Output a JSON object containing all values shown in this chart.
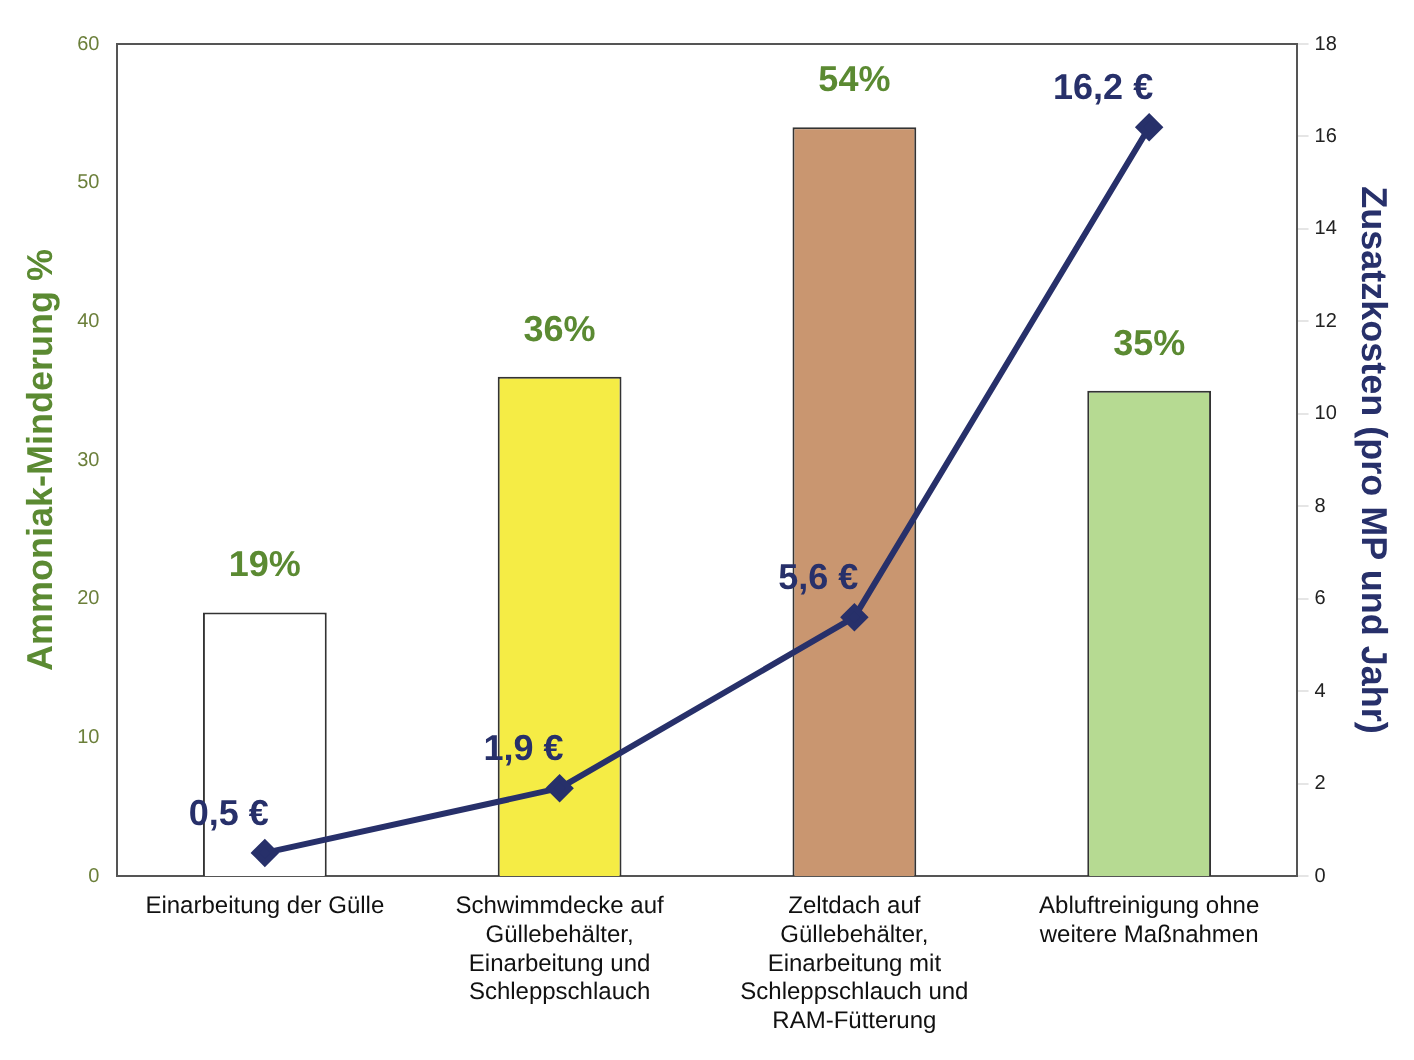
{
  "chart_data": {
    "type": "bar",
    "ylabel": "Ammoniak-Minderung %",
    "y2label": "Zusatzkosten (pro MP und Jahr)",
    "categories": [
      "Einarbeitung der Gülle",
      "Schwimmdecke auf Güllebehälter, Einarbeitung und Schleppschlauch",
      "Zeltdach auf Güllebehälter, Einarbeitung mit Schleppschlauch und RAM-Fütterung",
      "Abluftreinigung ohne weitere Maßnahmen"
    ],
    "series": [
      {
        "colors": [
          "#ffffff",
          "#f5ec45",
          "#c99670",
          "#b6da92"
        ],
        "values": [
          19,
          36,
          54,
          35
        ],
        "value_labels": [
          "19%",
          "36%",
          "54%",
          "35%"
        ]
      },
      {
        "type": "line",
        "axis": "y2",
        "color": "#27306a",
        "values": [
          0.5,
          1.9,
          5.6,
          16.2
        ],
        "value_labels": [
          "0,5 €",
          "1,9 €",
          "5,6 €",
          "16,2 €"
        ],
        "marker": "diamond"
      }
    ],
    "ylim": [
      0,
      60
    ],
    "yticks": [
      0,
      10,
      20,
      30,
      40,
      50,
      60
    ],
    "y2lim": [
      0,
      18
    ],
    "y2ticks": [
      0,
      2,
      4,
      6,
      8,
      10,
      12,
      14,
      16,
      18
    ],
    "grid": false,
    "legend": false
  }
}
